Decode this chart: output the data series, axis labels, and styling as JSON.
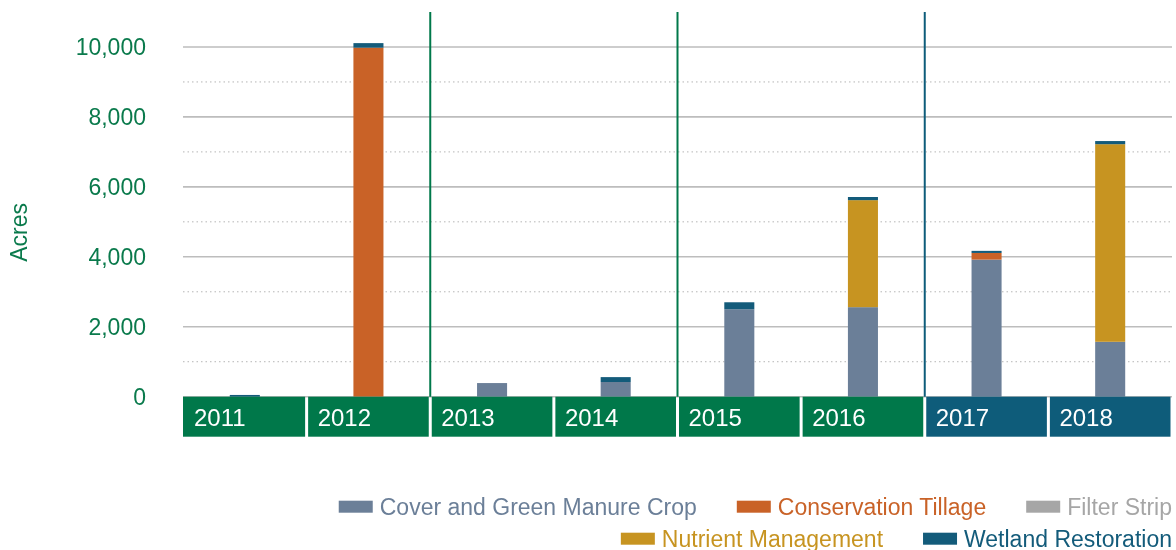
{
  "chart_data": {
    "type": "bar",
    "stacked": true,
    "ylabel": "Acres",
    "categories": [
      "2011",
      "2012",
      "2013",
      "2014",
      "2015",
      "2016",
      "2017",
      "2018"
    ],
    "ylim": [
      0,
      11000
    ],
    "yticks": [
      0,
      {
        "value": 1000,
        "label": null
      },
      {
        "value": 2000,
        "label": "2,000"
      },
      {
        "value": 3000,
        "label": null
      },
      {
        "value": 4000,
        "label": "4,000"
      },
      {
        "value": 5000,
        "label": null
      },
      {
        "value": 6000,
        "label": "6,000"
      },
      {
        "value": 7000,
        "label": null
      },
      {
        "value": 8000,
        "label": "8,000"
      },
      {
        "value": 9000,
        "label": null
      },
      {
        "value": 10000,
        "label": "10,000"
      }
    ],
    "grid": "y",
    "legend": "bottom right",
    "series": [
      {
        "name": "Cover and Green Manure Crop",
        "color": "#6b7f98",
        "values": [
          0,
          0,
          390,
          420,
          2500,
          2560,
          3920,
          1570
        ]
      },
      {
        "name": "Conservation Tillage",
        "color": "#c96227",
        "values": [
          0,
          9980,
          0,
          0,
          0,
          0,
          190,
          0
        ]
      },
      {
        "name": "Filter Strip",
        "color": "#a6a6a6",
        "values": [
          0,
          0,
          0,
          0,
          0,
          0,
          0,
          0
        ]
      },
      {
        "name": "Nutrient Management",
        "color": "#c79421",
        "values": [
          0,
          0,
          0,
          0,
          0,
          3060,
          0,
          5650
        ]
      },
      {
        "name": "Wetland Restoration",
        "color": "#135b7a",
        "values": [
          50,
          130,
          0,
          140,
          200,
          90,
          60,
          90
        ]
      }
    ],
    "ref_lines": [
      {
        "axis": "x",
        "value": "2013",
        "color": "#00784a"
      },
      {
        "axis": "x",
        "value": "2015",
        "color": "#00784a"
      },
      {
        "axis": "x",
        "value": "2017",
        "color": "#0e5c7a"
      }
    ]
  }
}
